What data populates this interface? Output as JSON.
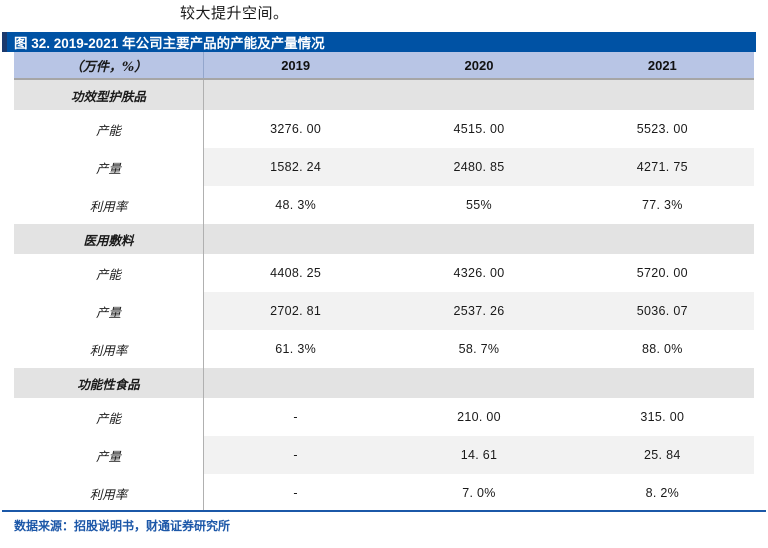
{
  "page": {
    "intro_text": "较大提升空间。"
  },
  "figure": {
    "title": "图 32. 2019-2021 年公司主要产品的产能及产量情况",
    "source": "数据来源：招股说明书，财通证券研究所"
  },
  "table": {
    "unit_header": "（万件，%）",
    "years": [
      "2019",
      "2020",
      "2021"
    ],
    "groups": [
      {
        "name": "功效型护肤品",
        "rows": [
          {
            "label": "产能",
            "values": [
              "3276. 00",
              "4515. 00",
              "5523. 00"
            ]
          },
          {
            "label": "产量",
            "values": [
              "1582. 24",
              "2480. 85",
              "4271. 75"
            ]
          },
          {
            "label": "利用率",
            "values": [
              "48. 3%",
              "55%",
              "77. 3%"
            ]
          }
        ]
      },
      {
        "name": "医用敷料",
        "rows": [
          {
            "label": "产能",
            "values": [
              "4408. 25",
              "4326. 00",
              "5720. 00"
            ]
          },
          {
            "label": "产量",
            "values": [
              "2702. 81",
              "2537. 26",
              "5036. 07"
            ]
          },
          {
            "label": "利用率",
            "values": [
              "61. 3%",
              "58. 7%",
              "88. 0%"
            ]
          }
        ]
      },
      {
        "name": "功能性食品",
        "rows": [
          {
            "label": "产能",
            "values": [
              "-",
              "210. 00",
              "315. 00"
            ]
          },
          {
            "label": "产量",
            "values": [
              "-",
              "14. 61",
              "25. 84"
            ]
          },
          {
            "label": "利用率",
            "values": [
              "-",
              "7. 0%",
              "8. 2%"
            ]
          }
        ]
      }
    ]
  },
  "colors": {
    "title_bar_bg": "#0052a4",
    "title_accent": "#1b3a6e",
    "header_row_bg": "#b8c5e5",
    "group_row_bg": "#e3e3e3",
    "stripe_bg": "#f2f2f2",
    "rule_blue": "#1b58a8",
    "source_text": "#1c57a8"
  }
}
